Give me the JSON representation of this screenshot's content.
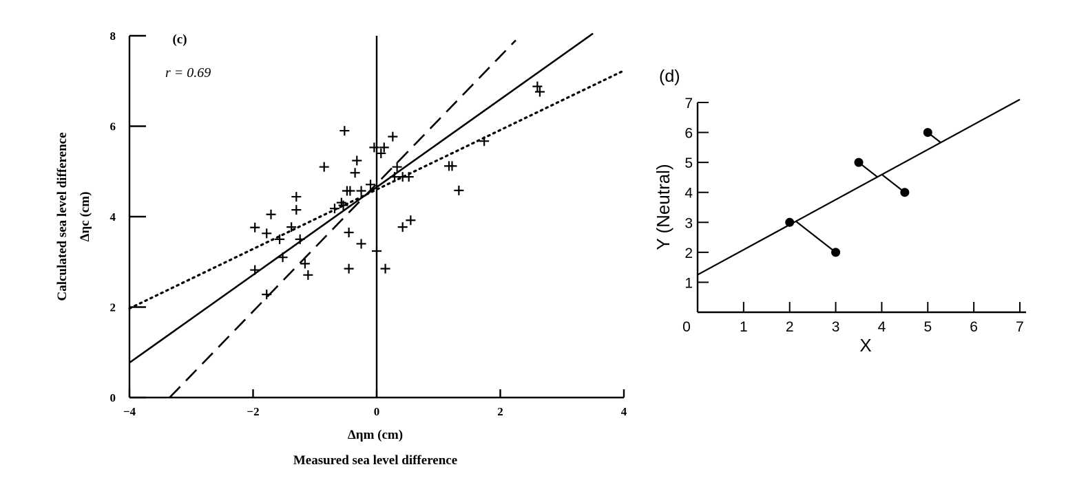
{
  "chart_data": [
    {
      "panel": "(c)",
      "type": "scatter",
      "annotation": "r = 0.69",
      "ylabel_line1": "Calculated sea level difference",
      "ylabel_line2": "Δηc (cm)",
      "xlabel_line1": "Δηm (cm)",
      "xlabel_line2": "Measured sea level difference",
      "xlim": [
        -4,
        4
      ],
      "ylim": [
        0,
        8
      ],
      "xticks": [
        "−4",
        "−2",
        "0",
        "2",
        "4"
      ],
      "yticks": [
        "0",
        "2",
        "4",
        "6",
        "8"
      ],
      "grid": false,
      "vertical_line_at_x": 0,
      "marker": "+",
      "points": [
        [
          -1.97,
          3.76
        ],
        [
          -1.97,
          2.82
        ],
        [
          -1.78,
          3.63
        ],
        [
          -1.78,
          2.28
        ],
        [
          -1.71,
          4.05
        ],
        [
          -1.57,
          3.5
        ],
        [
          -1.52,
          3.1
        ],
        [
          -1.38,
          3.77
        ],
        [
          -1.3,
          4.44
        ],
        [
          -1.3,
          4.15
        ],
        [
          -1.24,
          3.5
        ],
        [
          -1.16,
          2.96
        ],
        [
          -1.11,
          2.71
        ],
        [
          -0.85,
          5.1
        ],
        [
          -0.68,
          4.18
        ],
        [
          -0.57,
          4.31
        ],
        [
          -0.54,
          4.25
        ],
        [
          -0.52,
          5.9
        ],
        [
          -0.48,
          4.57
        ],
        [
          -0.43,
          4.57
        ],
        [
          -0.45,
          3.65
        ],
        [
          -0.45,
          2.85
        ],
        [
          -0.35,
          4.97
        ],
        [
          -0.32,
          5.24
        ],
        [
          -0.25,
          4.57
        ],
        [
          -0.25,
          3.4
        ],
        [
          -0.1,
          4.71
        ],
        [
          -0.04,
          5.53
        ],
        [
          0.0,
          3.24
        ],
        [
          0.07,
          5.4
        ],
        [
          0.12,
          5.53
        ],
        [
          0.14,
          2.85
        ],
        [
          0.26,
          5.77
        ],
        [
          0.29,
          4.88
        ],
        [
          0.33,
          5.1
        ],
        [
          0.42,
          4.88
        ],
        [
          0.42,
          3.77
        ],
        [
          0.52,
          4.88
        ],
        [
          0.55,
          3.92
        ],
        [
          1.17,
          5.12
        ],
        [
          1.22,
          5.12
        ],
        [
          1.33,
          4.58
        ],
        [
          1.74,
          5.67
        ],
        [
          2.6,
          6.88
        ],
        [
          2.64,
          6.76
        ]
      ],
      "lines": [
        {
          "style": "solid",
          "x": [
            -4,
            3.5
          ],
          "y": [
            0.77,
            8.05
          ]
        },
        {
          "style": "dashed",
          "x": [
            -3.35,
            2.25
          ],
          "y": [
            0.0,
            7.9
          ]
        },
        {
          "style": "dotted",
          "x": [
            -4,
            4
          ],
          "y": [
            1.97,
            7.23
          ]
        }
      ]
    },
    {
      "panel": "(d)",
      "type": "scatter",
      "xlabel": "X",
      "ylabel": "Y (Neutral)",
      "xlim": [
        0,
        7
      ],
      "ylim": [
        0,
        7
      ],
      "xticks": [
        "0",
        "1",
        "2",
        "3",
        "4",
        "5",
        "6",
        "7"
      ],
      "yticks": [
        "1",
        "2",
        "3",
        "4",
        "5",
        "6",
        "7"
      ],
      "grid": false,
      "marker": "filled-circle",
      "points": [
        [
          2,
          3
        ],
        [
          3,
          2
        ],
        [
          3.5,
          5
        ],
        [
          4.5,
          4
        ],
        [
          5,
          6
        ]
      ],
      "fit_line": {
        "x": [
          0,
          7
        ],
        "y": [
          1.25,
          7.1
        ]
      },
      "residuals": "perpendicular segments from each point to the fit line"
    }
  ]
}
